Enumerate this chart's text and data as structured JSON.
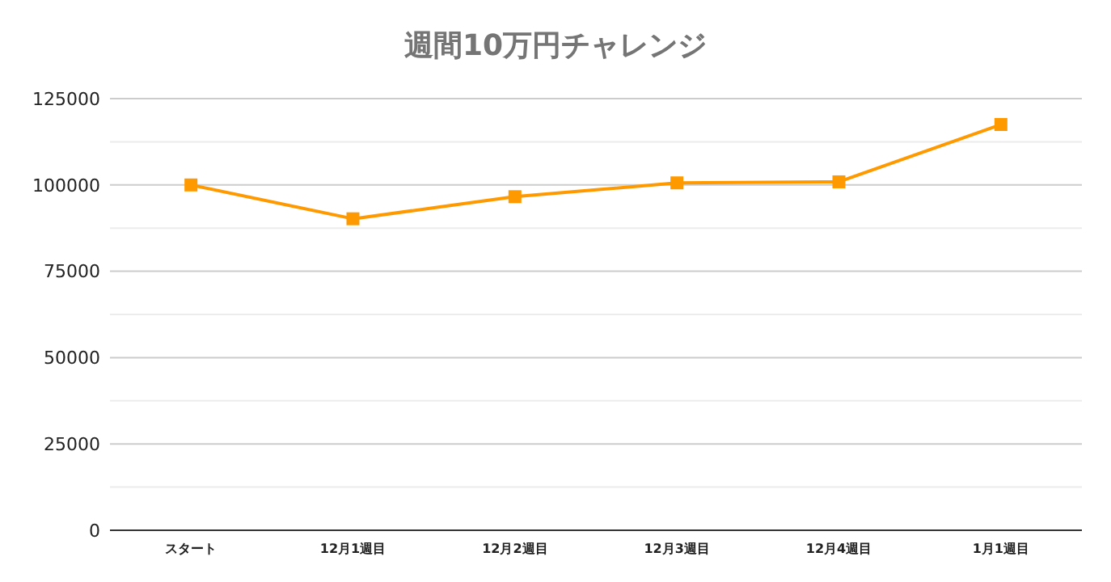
{
  "chart_data": {
    "type": "line",
    "title": "週間10万円チャレンジ",
    "categories": [
      "スタート",
      "12月1週目",
      "12月2週目",
      "12月3週目",
      "12月4週目",
      "1月1週目"
    ],
    "series": [
      {
        "color": "#ff9900",
        "values": [
          100000,
          90200,
          96600,
          100600,
          100900,
          117500
        ]
      }
    ],
    "ylim": [
      0,
      125000
    ],
    "yticks": [
      0,
      {
        "value": 12500,
        "label": null
      },
      25000,
      {
        "value": 37500,
        "label": null
      },
      50000,
      {
        "value": 62500,
        "label": null
      },
      75000,
      {
        "value": 87500,
        "label": null
      },
      100000,
      {
        "value": 112500,
        "label": null
      },
      125000
    ],
    "grid": "y",
    "marker": "square",
    "line_style": "solid"
  }
}
